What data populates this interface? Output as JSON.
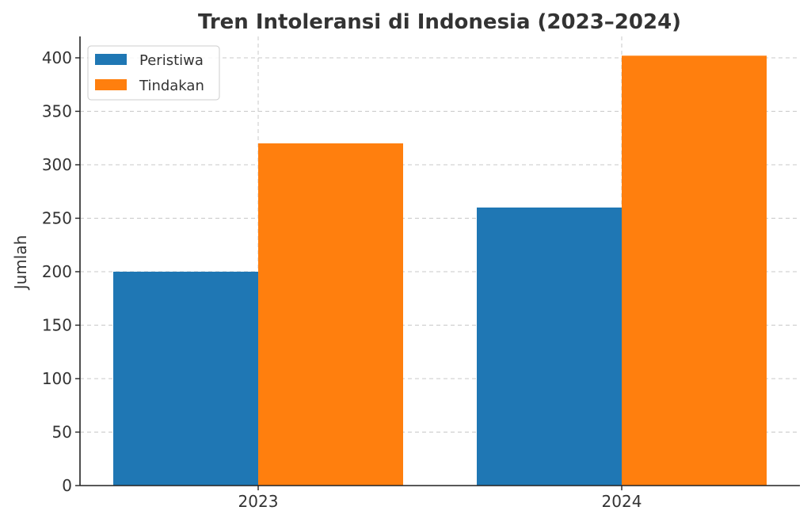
{
  "chart_data": {
    "type": "bar",
    "title": "Tren Intoleransi di Indonesia (2023–2024)",
    "xlabel": "",
    "ylabel": "Jumlah",
    "categories": [
      "2023",
      "2024"
    ],
    "series": [
      {
        "name": "Peristiwa",
        "values": [
          200,
          260
        ],
        "color": "#1f77b4"
      },
      {
        "name": "Tindakan",
        "values": [
          320,
          402
        ],
        "color": "#ff7f0e"
      }
    ],
    "ylim": [
      0,
      420
    ],
    "yticks": [
      0,
      50,
      100,
      150,
      200,
      250,
      300,
      350,
      400
    ],
    "grid": true,
    "legend_position": "top-left"
  }
}
